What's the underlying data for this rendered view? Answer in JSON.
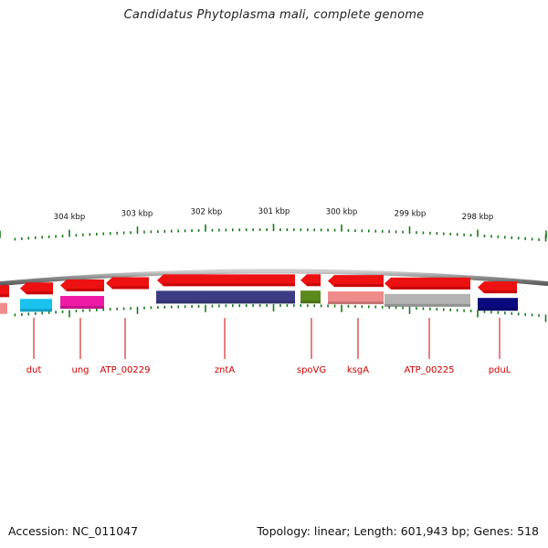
{
  "title": "Candidatus Phytoplasma mali, complete genome",
  "footer": {
    "accession_label": "Accession:",
    "accession": "NC_011047",
    "topology_text": "Topology: linear; Length: 601,943 bp; Genes: 518"
  },
  "scale": {
    "unit": "kbp",
    "ticks": [
      "304 kbp",
      "303 kbp",
      "302 kbp",
      "301 kbp",
      "300 kbp",
      "299 kbp",
      "298 kbp"
    ]
  },
  "colors": {
    "backbone": "#888888",
    "tick": "#1a7a1a",
    "label": "#cc0000",
    "cds": "#ee1111"
  },
  "genes": [
    {
      "name": "dut",
      "color": "#19c3ee"
    },
    {
      "name": "ung",
      "color": "#ee1aa8"
    },
    {
      "name": "ATP_00229",
      "color": ""
    },
    {
      "name": "zntA",
      "color": "#3c3c84"
    },
    {
      "name": "spoVG",
      "color": "#5c8a1a"
    },
    {
      "name": "ksgA",
      "color": "#ef8b8b"
    },
    {
      "name": "ATP_00225",
      "color": "#b3b3b3"
    },
    {
      "name": "pduL",
      "color": "#0a0a7e"
    }
  ]
}
